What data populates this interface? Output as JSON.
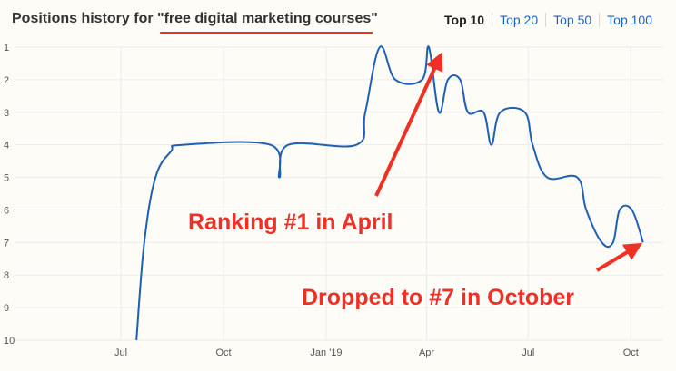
{
  "header": {
    "title_prefix": "Positions history for ",
    "keyword": "\"free digital marketing courses\"",
    "tabs": [
      {
        "label": "Top 10",
        "active": true
      },
      {
        "label": "Top 20",
        "active": false
      },
      {
        "label": "Top 50",
        "active": false
      },
      {
        "label": "Top 100",
        "active": false
      }
    ]
  },
  "colors": {
    "line": "#1f5fb4",
    "annotation": "#ee3124",
    "grid": "#ececec"
  },
  "chart_data": {
    "type": "line",
    "y_reversed": true,
    "ylim": [
      1,
      10
    ],
    "y_ticks": [
      "1",
      "2",
      "3",
      "4",
      "5",
      "6",
      "7",
      "8",
      "9",
      "10"
    ],
    "x_ticks": [
      "Jul",
      "Oct",
      "Jan '19",
      "Apr",
      "Jul",
      "Oct"
    ],
    "grid": true,
    "series": [
      {
        "values": [
          [
            "2018-07-15",
            10
          ],
          [
            "2018-07-22",
            7
          ],
          [
            "2018-08-01",
            5
          ],
          [
            "2018-08-15",
            4.2
          ],
          [
            "2018-08-25",
            4
          ],
          [
            "2018-11-12",
            4
          ],
          [
            "2018-11-20",
            5
          ],
          [
            "2018-11-28",
            4
          ],
          [
            "2019-01-28",
            4
          ],
          [
            "2019-02-05",
            3
          ],
          [
            "2019-02-18",
            1
          ],
          [
            "2019-03-04",
            2
          ],
          [
            "2019-03-28",
            2
          ],
          [
            "2019-04-03",
            1
          ],
          [
            "2019-04-12",
            3
          ],
          [
            "2019-04-20",
            2
          ],
          [
            "2019-05-01",
            2
          ],
          [
            "2019-05-08",
            3
          ],
          [
            "2019-05-22",
            3
          ],
          [
            "2019-05-29",
            4
          ],
          [
            "2019-06-06",
            3
          ],
          [
            "2019-06-28",
            3
          ],
          [
            "2019-07-05",
            4
          ],
          [
            "2019-07-18",
            5
          ],
          [
            "2019-08-14",
            5
          ],
          [
            "2019-08-22",
            6
          ],
          [
            "2019-09-05",
            7
          ],
          [
            "2019-09-15",
            7
          ],
          [
            "2019-09-21",
            6
          ],
          [
            "2019-10-02",
            6
          ],
          [
            "2019-10-12",
            7
          ]
        ]
      }
    ],
    "annotations": [
      {
        "text": "Ranking #1 in April"
      },
      {
        "text": "Dropped to #7 in October"
      }
    ]
  }
}
